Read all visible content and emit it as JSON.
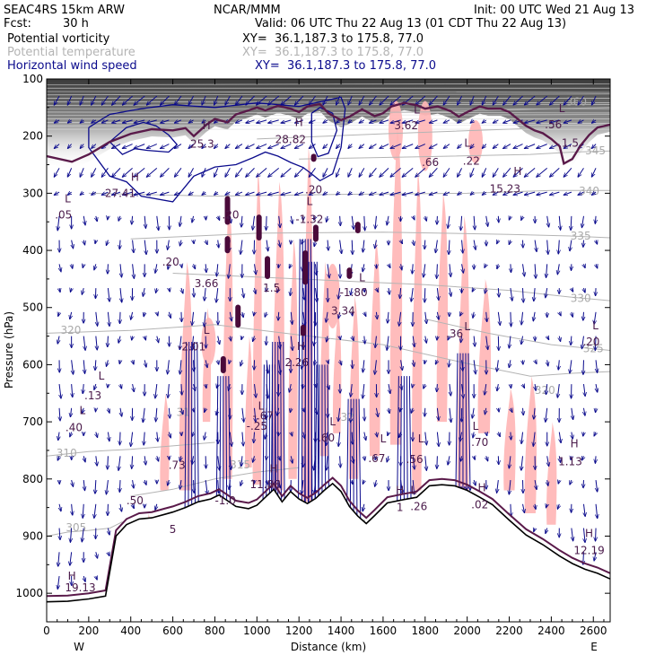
{
  "header": {
    "model": "SEAC4RS 15km ARW",
    "org": "NCAR/MMM",
    "init": "Init: 00 UTC Wed 21 Aug 13",
    "fcst_label": "Fcst:",
    "fcst_value": "30 h",
    "valid": "Valid: 06 UTC Thu 22 Aug 13 (01 CDT Thu 22 Aug 13)",
    "fields": [
      {
        "name": "Potential vorticity",
        "xy": "XY=  36.1,187.3 to 175.8, 77.0",
        "color": "#000000"
      },
      {
        "name": "Potential temperature",
        "xy": "XY=  36.1,187.3 to 175.8, 77.0",
        "color": "#b4b4b4"
      },
      {
        "name": "Horizontal wind speed",
        "xy": "XY=  36.1,187.3 to 175.8, 77.0",
        "color": "#0a0a8c"
      }
    ]
  },
  "chart_data": {
    "type": "cross-section",
    "xlabel": "Distance (km)",
    "ylabel": "Pressure (hPa)",
    "xlim": [
      0,
      2680
    ],
    "ylim": [
      1050,
      100
    ],
    "x_ticks": [
      0,
      200,
      400,
      600,
      800,
      1000,
      1200,
      1400,
      1600,
      1800,
      2000,
      2200,
      2400,
      2600
    ],
    "y_ticks": [
      100,
      200,
      300,
      400,
      500,
      600,
      700,
      800,
      900,
      1000
    ],
    "x_end_labels": {
      "left": "W",
      "right": "E"
    },
    "colors": {
      "terrain": "#000000",
      "theta": "#b4b4b4",
      "wind": "#0a0a8c",
      "pv_high": "#4a0a3a",
      "pv_shade": "#ffb6b6",
      "dynamic_tropopause": "#5a1a4a"
    },
    "terrain": [
      [
        0,
        1015
      ],
      [
        100,
        1014
      ],
      [
        200,
        1010
      ],
      [
        280,
        1005
      ],
      [
        330,
        900
      ],
      [
        380,
        880
      ],
      [
        440,
        870
      ],
      [
        500,
        868
      ],
      [
        560,
        862
      ],
      [
        600,
        858
      ],
      [
        660,
        850
      ],
      [
        720,
        840
      ],
      [
        780,
        835
      ],
      [
        820,
        828
      ],
      [
        860,
        838
      ],
      [
        900,
        848
      ],
      [
        960,
        852
      ],
      [
        1000,
        846
      ],
      [
        1040,
        832
      ],
      [
        1080,
        818
      ],
      [
        1120,
        840
      ],
      [
        1160,
        822
      ],
      [
        1200,
        835
      ],
      [
        1240,
        843
      ],
      [
        1280,
        834
      ],
      [
        1320,
        820
      ],
      [
        1360,
        808
      ],
      [
        1400,
        822
      ],
      [
        1440,
        848
      ],
      [
        1480,
        865
      ],
      [
        1520,
        878
      ],
      [
        1560,
        864
      ],
      [
        1620,
        842
      ],
      [
        1700,
        836
      ],
      [
        1760,
        832
      ],
      [
        1820,
        812
      ],
      [
        1880,
        810
      ],
      [
        1940,
        812
      ],
      [
        2000,
        820
      ],
      [
        2060,
        832
      ],
      [
        2120,
        845
      ],
      [
        2200,
        872
      ],
      [
        2280,
        898
      ],
      [
        2360,
        915
      ],
      [
        2440,
        935
      ],
      [
        2500,
        948
      ],
      [
        2560,
        958
      ],
      [
        2620,
        965
      ],
      [
        2680,
        975
      ]
    ],
    "theta_contours": [
      {
        "value": 305,
        "points": [
          [
            0,
            900
          ],
          [
            100,
            893
          ],
          [
            200,
            890
          ],
          [
            300,
            886
          ],
          [
            360,
            875
          ]
        ]
      },
      {
        "value": 310,
        "points": [
          [
            0,
            760
          ],
          [
            200,
            752
          ],
          [
            400,
            748
          ],
          [
            600,
            742
          ],
          [
            800,
            736
          ]
        ]
      },
      {
        "value": 315,
        "points": [
          [
            400,
            830
          ],
          [
            600,
            818
          ],
          [
            800,
            800
          ],
          [
            1000,
            788
          ],
          [
            1200,
            780
          ]
        ]
      },
      {
        "value": 320,
        "points": [
          [
            0,
            545
          ],
          [
            400,
            540
          ],
          [
            800,
            530
          ],
          [
            1200,
            548
          ],
          [
            1600,
            565
          ],
          [
            2000,
            598
          ],
          [
            2300,
            620
          ],
          [
            2500,
            615
          ],
          [
            2680,
            612
          ]
        ]
      },
      {
        "value": 325,
        "points": [
          [
            1800,
            520
          ],
          [
            2100,
            545
          ],
          [
            2400,
            565
          ],
          [
            2680,
            575
          ]
        ]
      },
      {
        "value": 330,
        "points": [
          [
            600,
            440
          ],
          [
            1200,
            450
          ],
          [
            1800,
            460
          ],
          [
            2200,
            470
          ],
          [
            2500,
            482
          ],
          [
            2680,
            488
          ]
        ]
      },
      {
        "value": 335,
        "points": [
          [
            400,
            380
          ],
          [
            1000,
            370
          ],
          [
            1600,
            368
          ],
          [
            2200,
            372
          ],
          [
            2500,
            375
          ],
          [
            2680,
            378
          ]
        ]
      },
      {
        "value": 340,
        "points": [
          [
            200,
            300
          ],
          [
            800,
            305
          ],
          [
            1400,
            302
          ],
          [
            2000,
            300
          ],
          [
            2400,
            295
          ],
          [
            2680,
            295
          ]
        ]
      },
      {
        "value": 345,
        "points": [
          [
            1200,
            240
          ],
          [
            1800,
            236
          ],
          [
            2300,
            232
          ],
          [
            2500,
            228
          ],
          [
            2680,
            226
          ]
        ]
      },
      {
        "value": 350,
        "points": [
          [
            1000,
            205
          ],
          [
            1600,
            196
          ],
          [
            2200,
            188
          ],
          [
            2680,
            182
          ]
        ]
      },
      {
        "value": 360,
        "points": [
          [
            1000,
            160
          ],
          [
            1800,
            158
          ],
          [
            2400,
            152
          ],
          [
            2680,
            150
          ]
        ]
      }
    ],
    "theta_labels": [
      {
        "text": "305",
        "x": 140,
        "p": 885
      },
      {
        "text": "310",
        "x": 95,
        "p": 755
      },
      {
        "text": "315",
        "x": 920,
        "p": 775
      },
      {
        "text": "31",
        "x": 650,
        "p": 683
      },
      {
        "text": "320",
        "x": 115,
        "p": 540
      },
      {
        "text": "320",
        "x": 2370,
        "p": 645
      },
      {
        "text": "325",
        "x": 2600,
        "p": 572
      },
      {
        "text": "330",
        "x": 2540,
        "p": 484
      },
      {
        "text": "335",
        "x": 2540,
        "p": 375
      },
      {
        "text": "340",
        "x": 2580,
        "p": 296
      },
      {
        "text": "345",
        "x": 2610,
        "p": 226
      },
      {
        "text": "360",
        "x": 2520,
        "p": 140
      },
      {
        "text": "32",
        "x": 1430,
        "p": 692
      },
      {
        "text": "35",
        "x": 1490,
        "p": 880
      }
    ],
    "tropopause": [
      [
        0,
        235
      ],
      [
        120,
        245
      ],
      [
        200,
        232
      ],
      [
        300,
        210
      ],
      [
        400,
        196
      ],
      [
        500,
        188
      ],
      [
        600,
        190
      ],
      [
        660,
        186
      ],
      [
        700,
        200
      ],
      [
        760,
        180
      ],
      [
        800,
        170
      ],
      [
        860,
        176
      ],
      [
        900,
        162
      ],
      [
        960,
        155
      ],
      [
        1000,
        150
      ],
      [
        1040,
        155
      ],
      [
        1100,
        147
      ],
      [
        1160,
        152
      ],
      [
        1200,
        158
      ],
      [
        1240,
        148
      ],
      [
        1300,
        144
      ],
      [
        1340,
        160
      ],
      [
        1400,
        172
      ],
      [
        1440,
        166
      ],
      [
        1500,
        153
      ],
      [
        1560,
        165
      ],
      [
        1600,
        160
      ],
      [
        1640,
        148
      ],
      [
        1700,
        142
      ],
      [
        1760,
        146
      ],
      [
        1800,
        152
      ],
      [
        1860,
        148
      ],
      [
        1920,
        156
      ],
      [
        1960,
        166
      ],
      [
        2000,
        158
      ],
      [
        2060,
        148
      ],
      [
        2100,
        152
      ],
      [
        2160,
        152
      ],
      [
        2200,
        158
      ],
      [
        2240,
        170
      ],
      [
        2280,
        182
      ],
      [
        2320,
        190
      ],
      [
        2360,
        195
      ],
      [
        2400,
        205
      ],
      [
        2440,
        218
      ],
      [
        2460,
        248
      ],
      [
        2500,
        240
      ],
      [
        2540,
        216
      ],
      [
        2580,
        198
      ],
      [
        2620,
        185
      ],
      [
        2680,
        180
      ]
    ],
    "jet_contours": [
      {
        "points": [
          [
            200,
            185
          ],
          [
            300,
            162
          ],
          [
            450,
            152
          ],
          [
            600,
            145
          ],
          [
            800,
            150
          ],
          [
            1000,
            142
          ],
          [
            1200,
            148
          ],
          [
            1300,
            140
          ],
          [
            1400,
            132
          ],
          [
            1420,
            152
          ],
          [
            1400,
            220
          ],
          [
            1360,
            266
          ],
          [
            1300,
            278
          ],
          [
            1260,
            266
          ],
          [
            1220,
            255
          ],
          [
            1160,
            246
          ],
          [
            1100,
            235
          ],
          [
            1040,
            228
          ],
          [
            980,
            238
          ],
          [
            900,
            250
          ],
          [
            800,
            254
          ],
          [
            700,
            270
          ],
          [
            600,
            315
          ],
          [
            450,
            305
          ],
          [
            380,
            280
          ],
          [
            300,
            270
          ],
          [
            200,
            220
          ],
          [
            200,
            185
          ]
        ]
      },
      {
        "points": [
          [
            300,
            210
          ],
          [
            380,
            185
          ],
          [
            460,
            176
          ],
          [
            520,
            182
          ],
          [
            580,
            198
          ],
          [
            620,
            215
          ],
          [
            580,
            228
          ],
          [
            480,
            225
          ],
          [
            420,
            222
          ],
          [
            360,
            232
          ],
          [
            300,
            210
          ]
        ]
      },
      {
        "points": [
          [
            1260,
            160
          ],
          [
            1300,
            150
          ],
          [
            1360,
            160
          ],
          [
            1380,
            190
          ],
          [
            1340,
            230
          ],
          [
            1290,
            236
          ],
          [
            1260,
            210
          ],
          [
            1260,
            160
          ]
        ]
      }
    ],
    "pv_labels": [
      {
        "text": "H",
        "x": 760,
        "p": 182
      },
      {
        "text": "25.3",
        "x": 740,
        "p": 214
      },
      {
        "text": "H",
        "x": 1200,
        "p": 176
      },
      {
        "text": "28.82",
        "x": 1160,
        "p": 206
      },
      {
        "text": "H",
        "x": 420,
        "p": 272
      },
      {
        "text": "27.41",
        "x": 350,
        "p": 300
      },
      {
        "text": "L",
        "x": 100,
        "p": 310
      },
      {
        "text": ".05",
        "x": 80,
        "p": 338
      },
      {
        "text": "L",
        "x": 1760,
        "p": 154
      },
      {
        "text": "3.62",
        "x": 1710,
        "p": 182
      },
      {
        "text": ".66",
        "x": 1825,
        "p": 246
      },
      {
        "text": "L",
        "x": 2000,
        "p": 212
      },
      {
        "text": ".22",
        "x": 2020,
        "p": 244
      },
      {
        "text": "H",
        "x": 2240,
        "p": 262
      },
      {
        "text": "15.23",
        "x": 2180,
        "p": 292
      },
      {
        "text": "L",
        "x": 2450,
        "p": 152
      },
      {
        "text": ".56",
        "x": 2410,
        "p": 180
      },
      {
        "text": "1.5",
        "x": 2490,
        "p": 212
      },
      {
        "text": ".20",
        "x": 875,
        "p": 338
      },
      {
        "text": ".20",
        "x": 590,
        "p": 420
      },
      {
        "text": "3.66",
        "x": 760,
        "p": 458
      },
      {
        "text": "L",
        "x": 1250,
        "p": 314
      },
      {
        "text": "-1.32",
        "x": 1250,
        "p": 346
      },
      {
        "text": "1.5",
        "x": 1070,
        "p": 466
      },
      {
        "text": "L",
        "x": 1500,
        "p": 448
      },
      {
        "text": "-1.80",
        "x": 1460,
        "p": 474
      },
      {
        "text": "3.34",
        "x": 1410,
        "p": 506
      },
      {
        "text": ".20",
        "x": 1270,
        "p": 294
      },
      {
        "text": "L",
        "x": 760,
        "p": 540
      },
      {
        "text": "-2.01",
        "x": 690,
        "p": 569
      },
      {
        "text": "H",
        "x": 1210,
        "p": 568
      },
      {
        "text": "2.26",
        "x": 1190,
        "p": 596
      },
      {
        "text": "L",
        "x": 2000,
        "p": 533
      },
      {
        "text": ".36",
        "x": 1940,
        "p": 546
      },
      {
        "text": "L",
        "x": 2610,
        "p": 532
      },
      {
        "text": ".20",
        "x": 2590,
        "p": 560
      },
      {
        "text": "L",
        "x": 260,
        "p": 620
      },
      {
        "text": ".13",
        "x": 220,
        "p": 654
      },
      {
        "text": "L",
        "x": 170,
        "p": 680
      },
      {
        "text": ".40",
        "x": 130,
        "p": 710
      },
      {
        "text": ".73",
        "x": 620,
        "p": 776
      },
      {
        "text": "L",
        "x": 1020,
        "p": 672
      },
      {
        "text": "-.67",
        "x": 1030,
        "p": 690
      },
      {
        "text": "-.25",
        "x": 1000,
        "p": 708
      },
      {
        "text": "L",
        "x": 1360,
        "p": 700
      },
      {
        "text": ".60",
        "x": 1330,
        "p": 728
      },
      {
        "text": "L",
        "x": 1600,
        "p": 730
      },
      {
        "text": ".67",
        "x": 1570,
        "p": 764
      },
      {
        "text": "L",
        "x": 1780,
        "p": 730
      },
      {
        "text": ".56",
        "x": 1750,
        "p": 766
      },
      {
        "text": "L",
        "x": 2040,
        "p": 708
      },
      {
        "text": ".70",
        "x": 2060,
        "p": 736
      },
      {
        "text": "H",
        "x": 2510,
        "p": 738
      },
      {
        "text": "1.13",
        "x": 2490,
        "p": 770
      },
      {
        "text": "H",
        "x": 1080,
        "p": 782
      },
      {
        "text": "11.88",
        "x": 1040,
        "p": 810
      },
      {
        "text": "-1.0",
        "x": 850,
        "p": 838
      },
      {
        "text": ".50",
        "x": 420,
        "p": 838
      },
      {
        "text": "5",
        "x": 600,
        "p": 888
      },
      {
        "text": "H",
        "x": 1680,
        "p": 820
      },
      {
        "text": "1",
        "x": 1680,
        "p": 850
      },
      {
        "text": "L",
        "x": 1745,
        "p": 820
      },
      {
        "text": ".26",
        "x": 1770,
        "p": 848
      },
      {
        "text": "H",
        "x": 2070,
        "p": 815
      },
      {
        "text": ".02",
        "x": 2060,
        "p": 845
      },
      {
        "text": "H",
        "x": 2580,
        "p": 895
      },
      {
        "text": "12.19",
        "x": 2580,
        "p": 925
      },
      {
        "text": "H",
        "x": 120,
        "p": 970
      },
      {
        "text": "19.13",
        "x": 160,
        "p": 990
      }
    ]
  }
}
